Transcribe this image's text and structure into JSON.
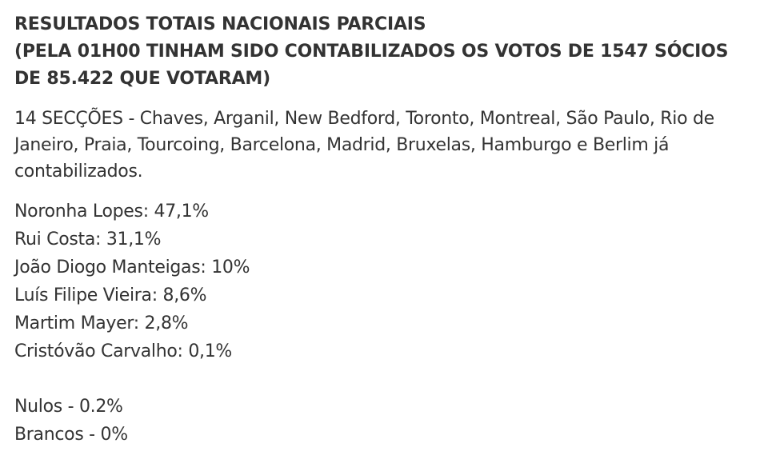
{
  "headline": {
    "line1": "RESULTADOS TOTAIS NACIONAIS PARCIAIS",
    "line2": "(PELA 01H00 TINHAM SIDO CONTABILIZADOS OS VOTOS DE 1547 SÓCIOS",
    "line3": "DE 85.422 QUE VOTARAM)"
  },
  "intro": "14 SECÇÕES - Chaves, Arganil, New Bedford, Toronto, Montreal, São Paulo, Rio de Janeiro, Praia, Tourcoing, Barcelona, Madrid, Bruxelas, Hamburgo e Berlim já contabilizados.",
  "results": [
    "Noronha Lopes: 47,1%",
    "Rui Costa: 31,1%",
    "João Diogo Manteigas: 10%",
    "Luís Filipe Vieira: 8,6%",
    "Martim Mayer: 2,8%",
    "Cristóvão Carvalho: 0,1%"
  ],
  "other": [
    "Nulos - 0.2%",
    "Brancos - 0%"
  ]
}
